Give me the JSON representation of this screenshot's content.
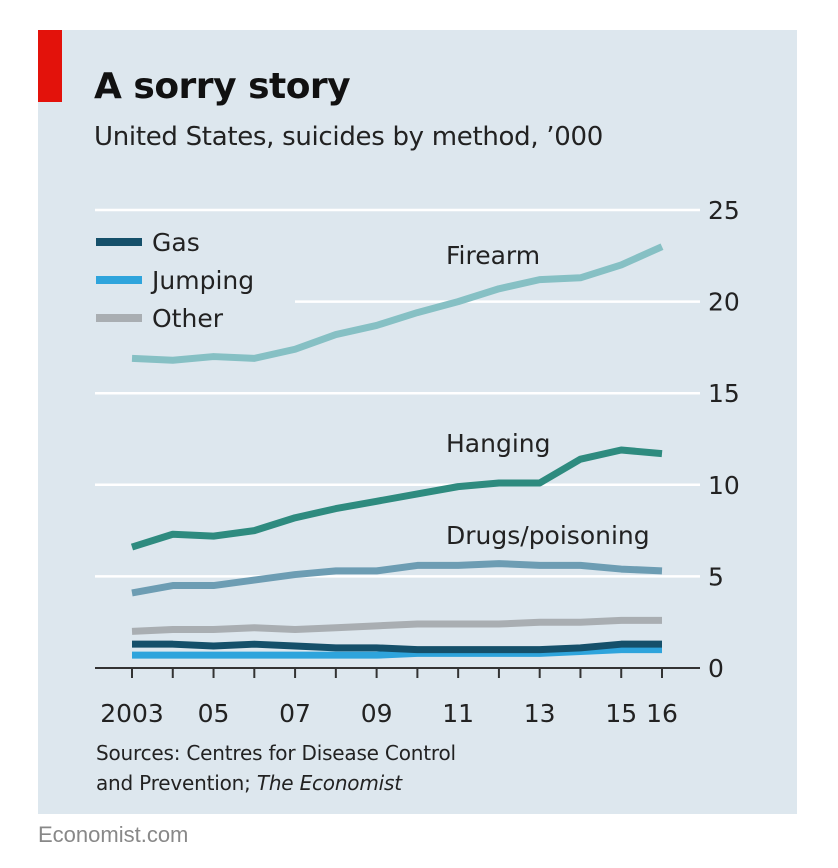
{
  "title": "A sorry story",
  "subtitle": "United States, suicides by method, ’000",
  "source": {
    "line1": "Sources: Centres for Disease Control",
    "line2_prefix": "and Prevention; ",
    "line2_italic": "The Economist"
  },
  "footer": "Economist.com",
  "colors": {
    "accent_red": "#e3120b",
    "panel": "#dde7ee",
    "firearm": "#86c0c4",
    "hanging": "#2e8b7f",
    "drugs": "#6d9db3",
    "other": "#a9aeb2",
    "gas": "#15506a",
    "jumping": "#2ea4dc"
  },
  "chart_data": {
    "type": "line",
    "x": [
      2003,
      2004,
      2005,
      2006,
      2007,
      2008,
      2009,
      2010,
      2011,
      2012,
      2013,
      2014,
      2015,
      2016
    ],
    "x_tick_values": [
      2003,
      2005,
      2007,
      2009,
      2011,
      2013,
      2015,
      2016
    ],
    "x_tick_labels": [
      "2003",
      "05",
      "07",
      "09",
      "11",
      "13",
      "15",
      "16"
    ],
    "ylim": [
      0,
      25
    ],
    "y_ticks": [
      0,
      5,
      10,
      15,
      20,
      25
    ],
    "y_tick_labels": [
      "0",
      "5",
      "10",
      "15",
      "20",
      "25"
    ],
    "y_axis_side": "right",
    "grid": "horizontal",
    "legend_position": "top-left",
    "legend_entries": [
      "Gas",
      "Jumping",
      "Other"
    ],
    "series": [
      {
        "key": "firearm",
        "name": "Firearm",
        "labeled_on_chart": true,
        "values": [
          16.9,
          16.8,
          17.0,
          16.9,
          17.4,
          18.2,
          18.7,
          19.4,
          20.0,
          20.7,
          21.2,
          21.3,
          22.0,
          23.0
        ]
      },
      {
        "key": "hanging",
        "name": "Hanging",
        "labeled_on_chart": true,
        "values": [
          6.6,
          7.3,
          7.2,
          7.5,
          8.2,
          8.7,
          9.1,
          9.5,
          9.9,
          10.1,
          10.1,
          11.4,
          11.9,
          11.7
        ]
      },
      {
        "key": "drugs",
        "name": "Drugs/poisoning",
        "labeled_on_chart": true,
        "values": [
          4.1,
          4.5,
          4.5,
          4.8,
          5.1,
          5.3,
          5.3,
          5.6,
          5.6,
          5.7,
          5.6,
          5.6,
          5.4,
          5.3
        ]
      },
      {
        "key": "other",
        "name": "Other",
        "labeled_on_chart": false,
        "values": [
          2.0,
          2.1,
          2.1,
          2.2,
          2.1,
          2.2,
          2.3,
          2.4,
          2.4,
          2.4,
          2.5,
          2.5,
          2.6,
          2.6
        ]
      },
      {
        "key": "gas",
        "name": "Gas",
        "labeled_on_chart": false,
        "values": [
          1.3,
          1.3,
          1.2,
          1.3,
          1.2,
          1.1,
          1.1,
          1.0,
          1.0,
          1.0,
          1.0,
          1.1,
          1.3,
          1.3
        ]
      },
      {
        "key": "jumping",
        "name": "Jumping",
        "labeled_on_chart": false,
        "values": [
          0.7,
          0.7,
          0.7,
          0.7,
          0.7,
          0.7,
          0.7,
          0.8,
          0.8,
          0.8,
          0.8,
          0.9,
          1.0,
          1.0
        ]
      }
    ]
  }
}
